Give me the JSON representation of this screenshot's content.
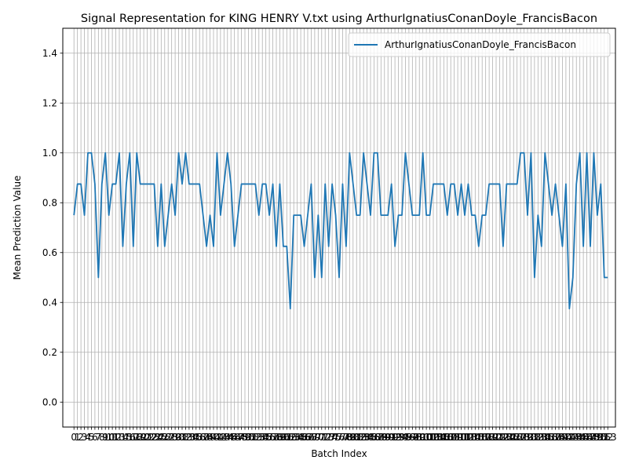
{
  "chart_data": {
    "type": "line",
    "title": "Signal Representation for KING HENRY V.txt using ArthurIgnatiusConanDoyle_FrancisBacon",
    "xlabel": "Batch Index",
    "ylabel": "Mean Prediction Value",
    "xlim": [
      -3.2,
      155.2
    ],
    "ylim": [
      -0.1,
      1.5
    ],
    "yticks": [
      0.0,
      0.2,
      0.4,
      0.6,
      0.8,
      1.0,
      1.2,
      1.4
    ],
    "ytick_labels": [
      "0.0",
      "0.2",
      "0.4",
      "0.6",
      "0.8",
      "1.0",
      "1.2",
      "1.4"
    ],
    "grid": true,
    "legend_position": "top-right",
    "series": [
      {
        "name": "ArthurIgnatiusConanDoyle_FrancisBacon",
        "color": "#1f77b4",
        "x": [
          0,
          1,
          2,
          3,
          4,
          5,
          6,
          7,
          8,
          9,
          10,
          11,
          12,
          13,
          14,
          15,
          16,
          17,
          18,
          19,
          20,
          21,
          22,
          23,
          24,
          25,
          26,
          27,
          28,
          29,
          30,
          31,
          32,
          33,
          34,
          35,
          36,
          37,
          38,
          39,
          40,
          41,
          42,
          43,
          44,
          45,
          46,
          47,
          48,
          49,
          50,
          51,
          52,
          53,
          54,
          55,
          56,
          57,
          58,
          59,
          60,
          61,
          62,
          63,
          64,
          65,
          66,
          67,
          68,
          69,
          70,
          71,
          72,
          73,
          74,
          75,
          76,
          77,
          78,
          79,
          80,
          81,
          82,
          83,
          84,
          85,
          86,
          87,
          88,
          89,
          90,
          91,
          92,
          93,
          94,
          95,
          96,
          97,
          98,
          99,
          100,
          101,
          102,
          103,
          104,
          105,
          106,
          107,
          108,
          109,
          110,
          111,
          112,
          113,
          114,
          115,
          116,
          117,
          118,
          119,
          120,
          121,
          122,
          123,
          124,
          125,
          126,
          127,
          128,
          129,
          130,
          131,
          132,
          133,
          134,
          135,
          136,
          137,
          138,
          139,
          140,
          141,
          142,
          143,
          144,
          145,
          146,
          147,
          148,
          149,
          150,
          151,
          152,
          153
        ],
        "values": [
          0.75,
          0.875,
          0.875,
          0.75,
          1.0,
          1.0,
          0.875,
          0.5,
          0.875,
          1.0,
          0.75,
          0.875,
          0.875,
          1.0,
          0.625,
          0.875,
          1.0,
          0.625,
          1.0,
          0.875,
          0.875,
          0.875,
          0.875,
          0.875,
          0.625,
          0.875,
          0.625,
          0.75,
          0.875,
          0.75,
          1.0,
          0.875,
          1.0,
          0.875,
          0.875,
          0.875,
          0.875,
          0.75,
          0.625,
          0.75,
          0.625,
          1.0,
          0.75,
          0.875,
          1.0,
          0.875,
          0.625,
          0.75,
          0.875,
          0.875,
          0.875,
          0.875,
          0.875,
          0.75,
          0.875,
          0.875,
          0.75,
          0.875,
          0.625,
          0.875,
          0.625,
          0.625,
          0.375,
          0.75,
          0.75,
          0.75,
          0.625,
          0.75,
          0.875,
          0.5,
          0.75,
          0.5,
          0.875,
          0.625,
          0.875,
          0.75,
          0.5,
          0.875,
          0.625,
          1.0,
          0.875,
          0.75,
          0.75,
          1.0,
          0.875,
          0.75,
          1.0,
          1.0,
          0.75,
          0.75,
          0.75,
          0.875,
          0.625,
          0.75,
          0.75,
          1.0,
          0.875,
          0.75,
          0.75,
          0.75,
          1.0,
          0.75,
          0.75,
          0.875,
          0.875,
          0.875,
          0.875,
          0.75,
          0.875,
          0.875,
          0.75,
          0.875,
          0.75,
          0.875,
          0.75,
          0.75,
          0.625,
          0.75,
          0.75,
          0.875,
          0.875,
          0.875,
          0.875,
          0.625,
          0.875,
          0.875,
          0.875,
          0.875,
          1.0,
          1.0,
          0.75,
          1.0,
          0.5,
          0.75,
          0.625,
          1.0,
          0.875,
          0.75,
          0.875,
          0.75,
          0.625,
          0.875,
          0.375,
          0.5,
          0.875,
          1.0,
          0.625,
          1.0,
          0.625,
          1.0,
          0.75,
          0.875,
          0.5,
          0.5
        ]
      }
    ]
  }
}
